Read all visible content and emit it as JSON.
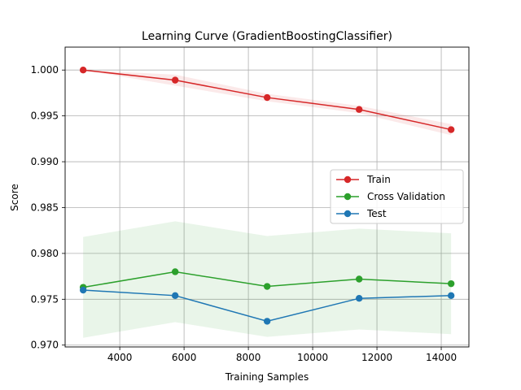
{
  "chart_data": {
    "type": "line",
    "title": "Learning Curve (GradientBoostingClassifier)",
    "xlabel": "Training Samples",
    "ylabel": "Score",
    "xlim": [
      2300,
      14860
    ],
    "ylim": [
      0.9698,
      1.0025
    ],
    "xticks": [
      4000,
      6000,
      8000,
      10000,
      12000,
      14000
    ],
    "xtick_labels": [
      "4000",
      "6000",
      "8000",
      "10000",
      "12000",
      "14000"
    ],
    "yticks": [
      0.97,
      0.975,
      0.98,
      0.985,
      0.99,
      0.995,
      1.0
    ],
    "ytick_labels": [
      "0.970",
      "0.975",
      "0.980",
      "0.985",
      "0.990",
      "0.995",
      "1.000"
    ],
    "grid": true,
    "legend_position": "center-right",
    "x": [
      2861,
      5723,
      8584,
      11446,
      14307
    ],
    "series": [
      {
        "name": "Train",
        "color": "#d62728",
        "values": [
          1.0,
          0.9989,
          0.997,
          0.9957,
          0.9935
        ],
        "band_lower": [
          1.0,
          0.9983,
          0.9966,
          0.9953,
          0.9929
        ],
        "band_upper": [
          1.0,
          0.9995,
          0.9974,
          0.9961,
          0.9941
        ]
      },
      {
        "name": "Cross Validation",
        "color": "#2ca02c",
        "values": [
          0.9763,
          0.978,
          0.9764,
          0.9772,
          0.9767
        ],
        "band_lower": [
          0.9708,
          0.9725,
          0.9709,
          0.9717,
          0.9712
        ],
        "band_upper": [
          0.9818,
          0.9835,
          0.9819,
          0.9827,
          0.9822
        ]
      },
      {
        "name": "Test",
        "color": "#1f77b4",
        "values": [
          0.976,
          0.9754,
          0.9726,
          0.9751,
          0.9754
        ]
      }
    ]
  }
}
